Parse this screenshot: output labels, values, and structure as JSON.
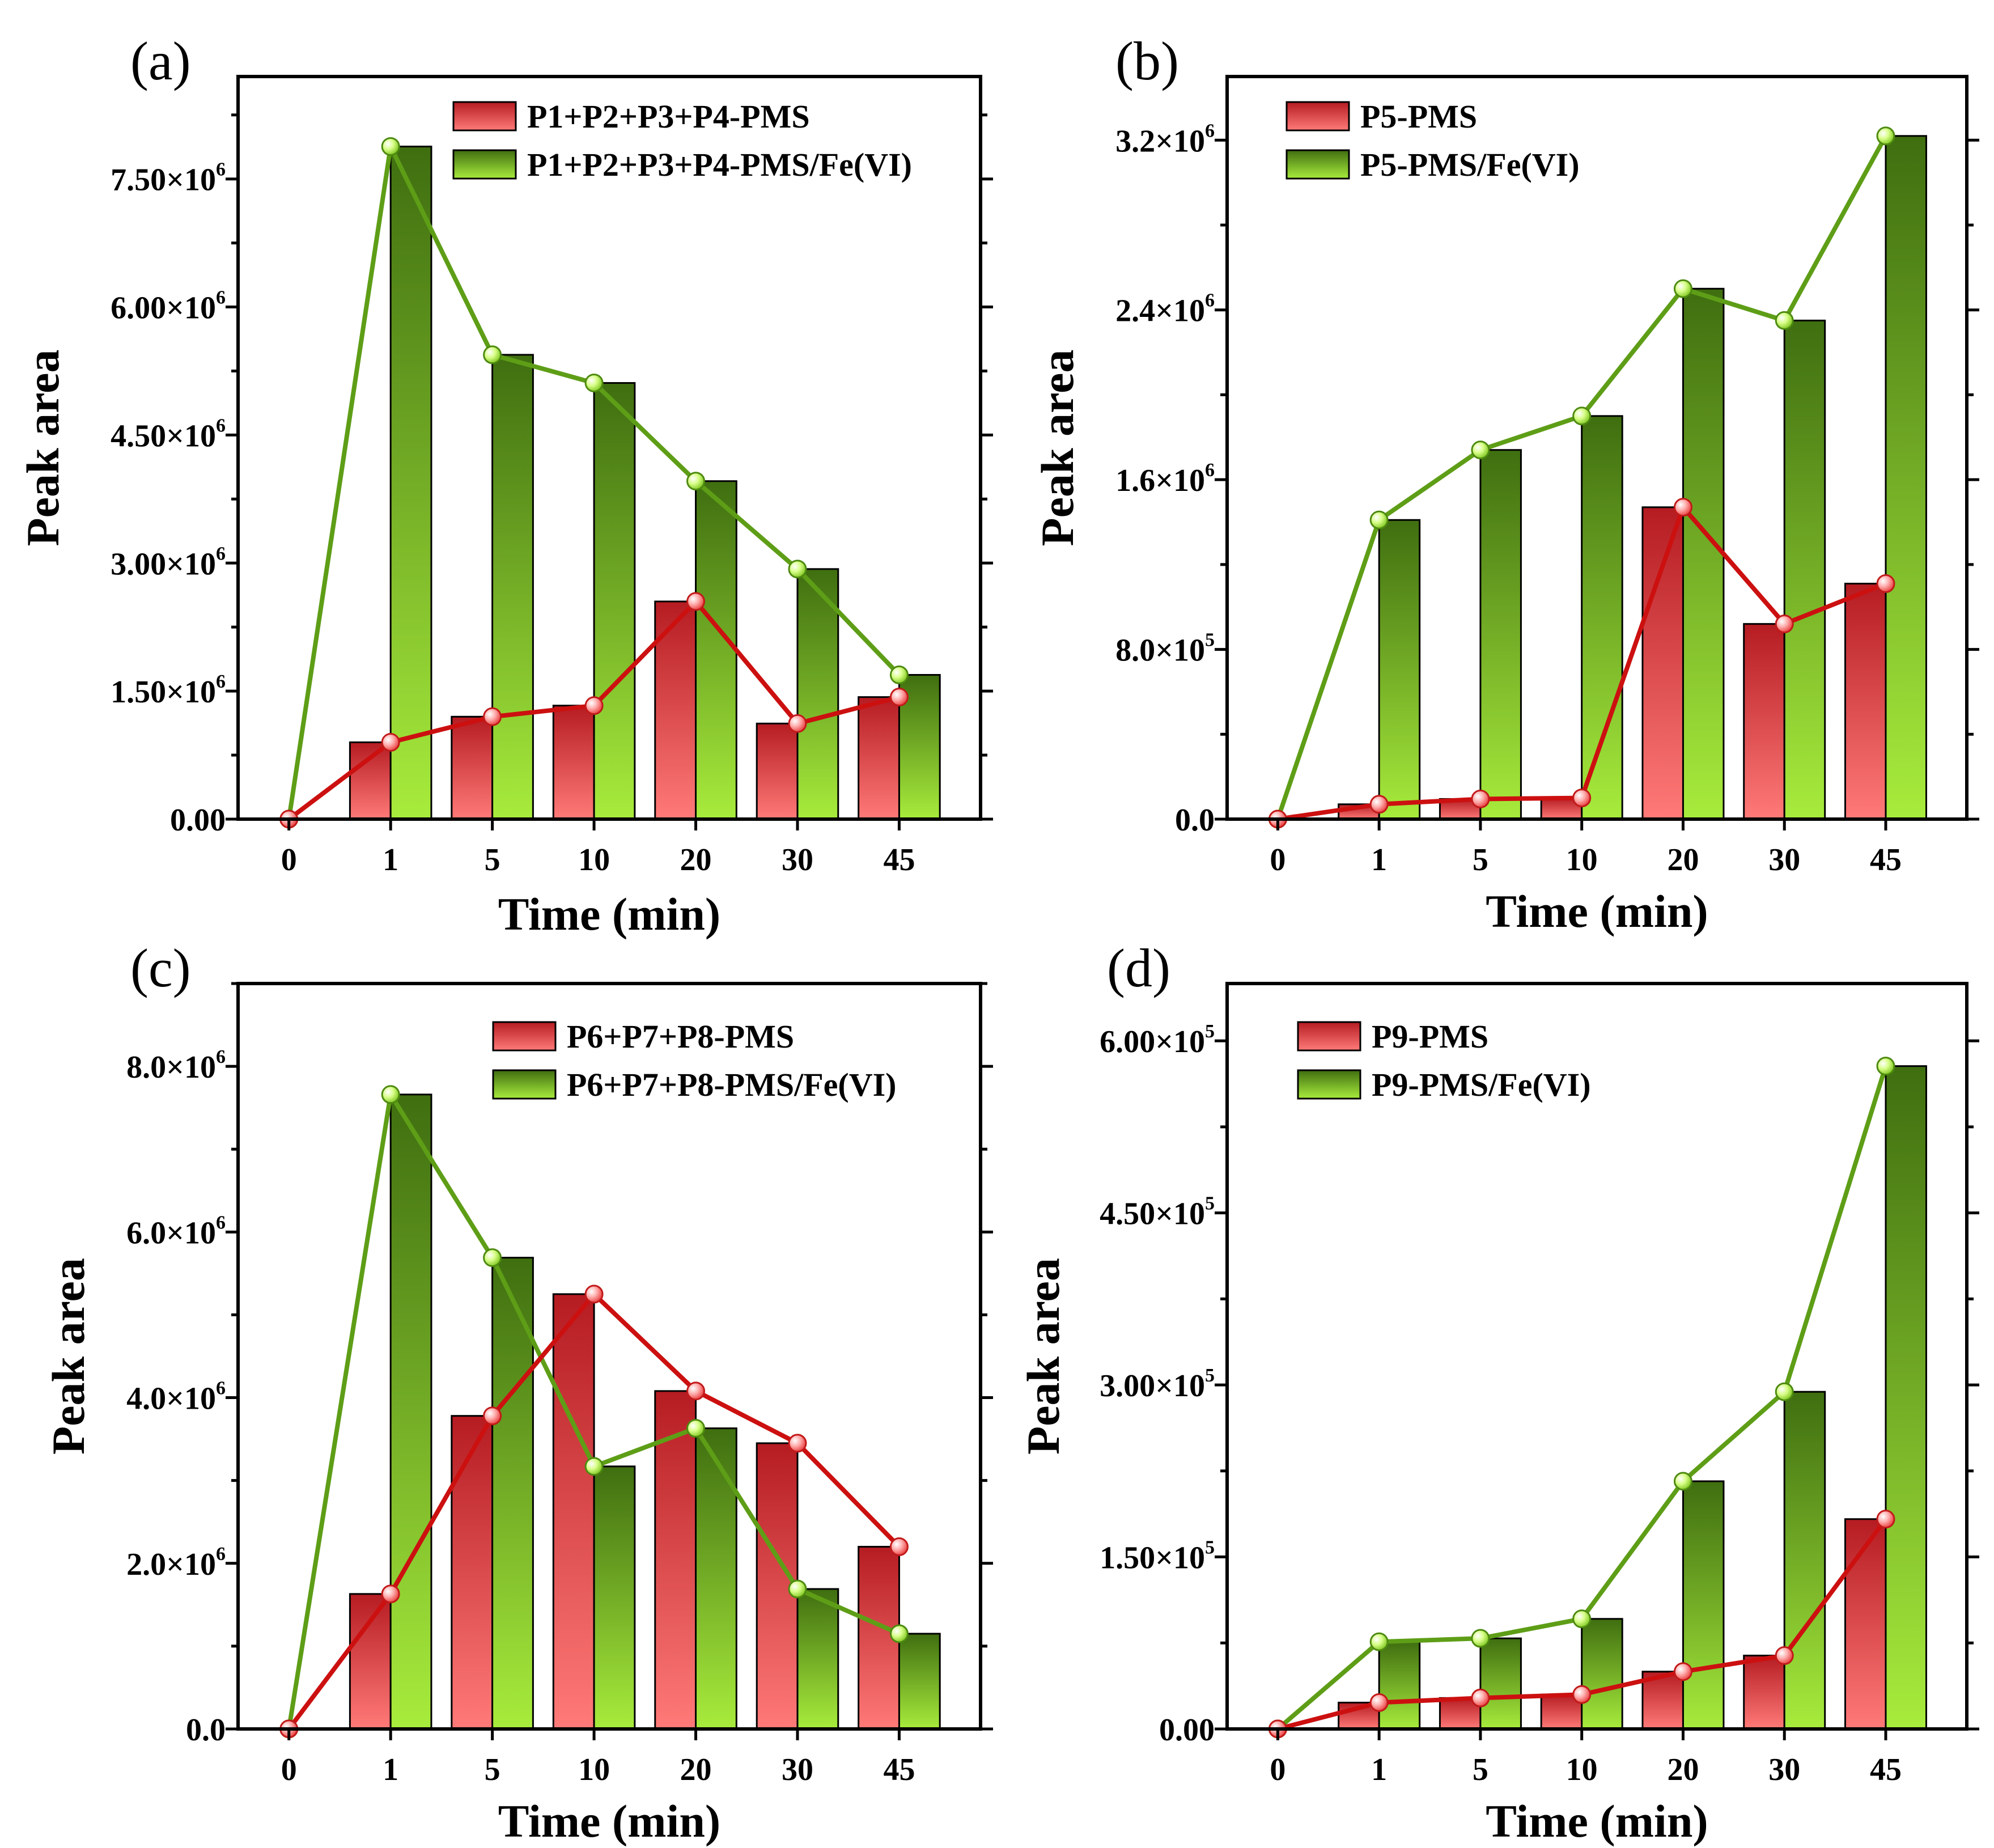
{
  "figure": {
    "panels": [
      {
        "label": "(a)",
        "xlabel": "Time (min)",
        "ylabel": "Peak area",
        "categories": [
          "0",
          "1",
          "5",
          "10",
          "20",
          "30",
          "45"
        ],
        "ylim": [
          0,
          8700000
        ],
        "yticks": [
          {
            "value": 0,
            "mant": "0.00",
            "exp": ""
          },
          {
            "value": 1500000,
            "mant": "1.50×10",
            "exp": "6"
          },
          {
            "value": 3000000,
            "mant": "3.00×10",
            "exp": "6"
          },
          {
            "value": 4500000,
            "mant": "4.50×10",
            "exp": "6"
          },
          {
            "value": 6000000,
            "mant": "6.00×10",
            "exp": "6"
          },
          {
            "value": 7500000,
            "mant": "7.50×10",
            "exp": "6"
          }
        ],
        "minor_step": 750000,
        "series": [
          {
            "name": "P1+P2+P3+P4-PMS",
            "kind": "red",
            "values": [
              0,
              900000,
              1200000,
              1330000,
              2550000,
              1120000,
              1430000
            ]
          },
          {
            "name": "P1+P2+P3+P4-PMS/Fe(VI)",
            "kind": "green",
            "values": [
              0,
              7880000,
              5440000,
              5110000,
              3960000,
              2930000,
              1690000
            ]
          }
        ]
      },
      {
        "label": "(b)",
        "xlabel": "Time (min)",
        "ylabel": "Peak area",
        "categories": [
          "0",
          "1",
          "5",
          "10",
          "20",
          "30",
          "45"
        ],
        "ylim": [
          0,
          3500000
        ],
        "yticks": [
          {
            "value": 0,
            "mant": "0.0",
            "exp": ""
          },
          {
            "value": 800000,
            "mant": "8.0×10",
            "exp": "5"
          },
          {
            "value": 1600000,
            "mant": "1.6×10",
            "exp": "6"
          },
          {
            "value": 2400000,
            "mant": "2.4×10",
            "exp": "6"
          },
          {
            "value": 3200000,
            "mant": "3.2×10",
            "exp": "6"
          }
        ],
        "minor_step": 400000,
        "series": [
          {
            "name": "P5-PMS",
            "kind": "red",
            "values": [
              0,
              70000,
              95000,
              100000,
              1470000,
              920000,
              1110000
            ]
          },
          {
            "name": "P5-PMS/Fe(VI)",
            "kind": "green",
            "values": [
              0,
              1410000,
              1740000,
              1900000,
              2500000,
              2350000,
              3220000
            ]
          }
        ]
      },
      {
        "label": "(c)",
        "xlabel": "Time (min)",
        "ylabel": "Peak area",
        "categories": [
          "0",
          "1",
          "5",
          "10",
          "20",
          "30",
          "45"
        ],
        "ylim": [
          0,
          9000000
        ],
        "yticks": [
          {
            "value": 0,
            "mant": "0.0",
            "exp": ""
          },
          {
            "value": 2000000,
            "mant": "2.0×10",
            "exp": "6"
          },
          {
            "value": 4000000,
            "mant": "4.0×10",
            "exp": "6"
          },
          {
            "value": 6000000,
            "mant": "6.0×10",
            "exp": "6"
          },
          {
            "value": 8000000,
            "mant": "8.0×10",
            "exp": "6"
          }
        ],
        "minor_step": 1000000,
        "series": [
          {
            "name": "P6+P7+P8-PMS",
            "kind": "red",
            "values": [
              0,
              1630000,
              3780000,
              5250000,
              4080000,
              3450000,
              2200000
            ]
          },
          {
            "name": "P6+P7+P8-PMS/Fe(VI)",
            "kind": "green",
            "values": [
              0,
              7660000,
              5690000,
              3170000,
              3630000,
              1690000,
              1150000
            ]
          }
        ]
      },
      {
        "label": "(d)",
        "xlabel": "Time (min)",
        "ylabel": "Peak area",
        "categories": [
          "0",
          "1",
          "5",
          "10",
          "20",
          "30",
          "45"
        ],
        "ylim": [
          0,
          650000
        ],
        "yticks": [
          {
            "value": 0,
            "mant": "0.00",
            "exp": ""
          },
          {
            "value": 150000,
            "mant": "1.50×10",
            "exp": "5"
          },
          {
            "value": 300000,
            "mant": "3.00×10",
            "exp": "5"
          },
          {
            "value": 450000,
            "mant": "4.50×10",
            "exp": "5"
          },
          {
            "value": 600000,
            "mant": "6.00×10",
            "exp": "5"
          }
        ],
        "minor_step": 75000,
        "series": [
          {
            "name": "P9-PMS",
            "kind": "red",
            "values": [
              0,
              23000,
              27000,
              30000,
              50000,
              64000,
              183000
            ]
          },
          {
            "name": "P9-PMS/Fe(VI)",
            "kind": "green",
            "values": [
              0,
              76000,
              79000,
              96000,
              216000,
              294000,
              578000
            ]
          }
        ]
      }
    ],
    "colors": {
      "red_line": "#cc1010",
      "red_bar_top": "#b51c22",
      "red_bar_bottom": "#ff7a78",
      "green_line": "#5e9e17",
      "green_bar_top": "#3f6e10",
      "green_bar_bottom": "#a8ec3c"
    }
  }
}
